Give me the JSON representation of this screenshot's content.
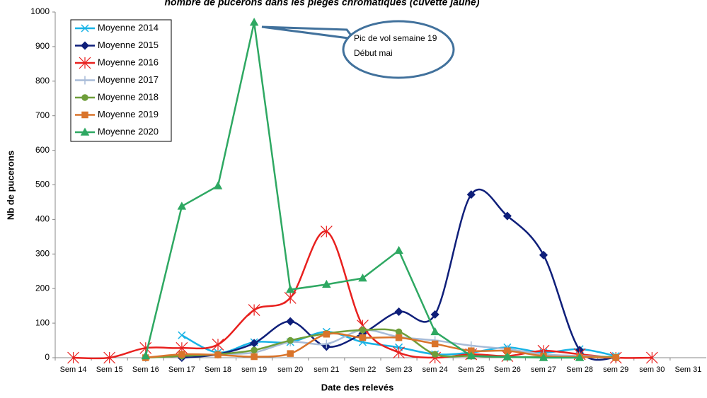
{
  "chart_data": {
    "type": "line",
    "title": "nombre de pucerons dans les pièges chromatiques (cuvette jaune)",
    "y_label": "Nb de pucerons",
    "x_label": "Date des relevés",
    "annotation": [
      "Pic de vol semaine 19",
      "Début mai"
    ],
    "categories": [
      "Sem 14",
      "Sem 15",
      "Sem 16",
      "Sem 17",
      "Sem 18",
      "sem 19",
      "sem 20",
      "sem 21",
      "Sem 22",
      "Sem 23",
      "sem 24",
      "Sem 25",
      "Sem 26",
      "sem 27",
      "Sem 28",
      "sem 29",
      "sem 30",
      "Sem 31"
    ],
    "ylim": [
      0,
      1000
    ],
    "yticks": [
      0,
      100,
      200,
      300,
      400,
      500,
      600,
      700,
      800,
      900,
      1000
    ],
    "legend": "upper left",
    "series": [
      {
        "name": "Moyenne 2014",
        "color": "#17b3e6",
        "marker": "x",
        "smooth": true,
        "values": [
          null,
          null,
          null,
          65,
          15,
          45,
          45,
          75,
          45,
          30,
          10,
          15,
          30,
          15,
          25,
          5,
          null,
          null
        ]
      },
      {
        "name": "Moyenne 2015",
        "color": "#0f1f7a",
        "marker": "diamond",
        "smooth": true,
        "values": [
          null,
          null,
          null,
          0,
          10,
          42,
          105,
          32,
          70,
          133,
          125,
          472,
          410,
          297,
          22,
          0,
          null,
          null
        ]
      },
      {
        "name": "Moyenne 2016",
        "color": "#e8201e",
        "marker": "star",
        "smooth": true,
        "values": [
          0,
          0,
          28,
          28,
          38,
          138,
          173,
          365,
          93,
          15,
          0,
          10,
          5,
          20,
          10,
          0,
          0,
          null
        ]
      },
      {
        "name": "Moyenne 2017",
        "color": "#a8bcd8",
        "marker": "plus",
        "smooth": true,
        "values": [
          null,
          null,
          0,
          5,
          10,
          15,
          45,
          40,
          80,
          60,
          50,
          35,
          25,
          10,
          5,
          2,
          null,
          null
        ]
      },
      {
        "name": "Moyenne 2018",
        "color": "#6e9e3a",
        "marker": "circle",
        "smooth": true,
        "values": [
          null,
          null,
          0,
          5,
          10,
          22,
          50,
          70,
          80,
          75,
          10,
          5,
          2,
          2,
          2,
          2,
          null,
          null
        ]
      },
      {
        "name": "Moyenne 2019",
        "color": "#d9742b",
        "marker": "square",
        "smooth": true,
        "values": [
          null,
          null,
          0,
          10,
          8,
          3,
          12,
          68,
          58,
          58,
          40,
          20,
          20,
          5,
          2,
          0,
          null,
          null
        ]
      },
      {
        "name": "Moyenne 2020",
        "color": "#2ea862",
        "marker": "triangle",
        "smooth": false,
        "values": [
          null,
          null,
          5,
          438,
          497,
          970,
          197,
          212,
          230,
          310,
          75,
          5,
          2,
          0,
          0,
          null,
          null,
          null
        ]
      }
    ]
  }
}
